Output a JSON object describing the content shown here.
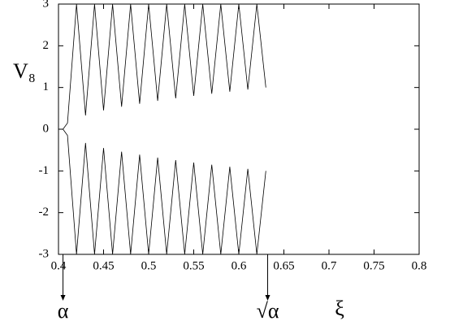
{
  "chart_data": {
    "type": "line",
    "y_label": "V₈",
    "x_label": "ξ",
    "x": [
      0.405,
      0.41,
      0.42,
      0.43,
      0.44,
      0.45,
      0.46,
      0.47,
      0.48,
      0.49,
      0.5,
      0.51,
      0.52,
      0.53,
      0.54,
      0.55,
      0.56,
      0.57,
      0.58,
      0.59,
      0.6,
      0.61,
      0.62,
      0.63
    ],
    "series": [
      {
        "name": "upper",
        "color": "#000000",
        "values": [
          0,
          0.15,
          3,
          0.33,
          3,
          0.45,
          3,
          0.54,
          3,
          0.61,
          3,
          0.68,
          3,
          0.74,
          3,
          0.8,
          3,
          0.85,
          3,
          0.9,
          3,
          0.95,
          3,
          1.0
        ]
      },
      {
        "name": "lower",
        "color": "#000000",
        "values": [
          0,
          -0.15,
          -3,
          -0.33,
          -3,
          -0.45,
          -3,
          -0.54,
          -3,
          -0.61,
          -3,
          -0.68,
          -3,
          -0.74,
          -3,
          -0.8,
          -3,
          -0.85,
          -3,
          -0.9,
          -3,
          -0.95,
          -3,
          -1.0
        ]
      }
    ],
    "xlim": [
      0.4,
      0.8
    ],
    "ylim": [
      -3,
      3
    ],
    "xticks": [
      0.4,
      0.45,
      0.5,
      0.55,
      0.6,
      0.65,
      0.7,
      0.75,
      0.8
    ],
    "yticks": [
      -3,
      -2,
      -1,
      0,
      1,
      2,
      3
    ],
    "annotations": [
      {
        "text": "α",
        "x": 0.405
      },
      {
        "text": "√α",
        "x": 0.632
      }
    ]
  }
}
